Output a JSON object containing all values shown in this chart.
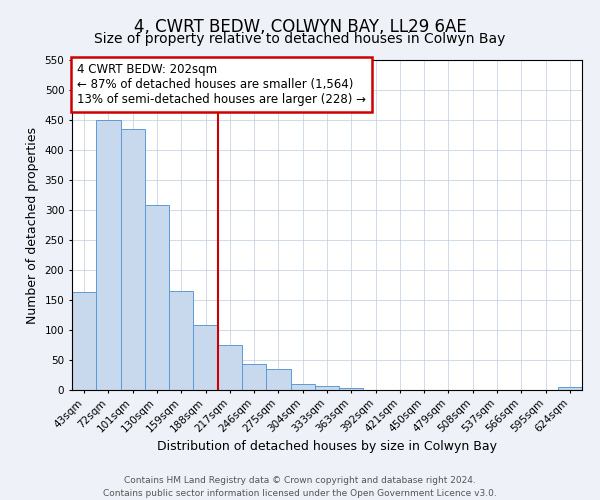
{
  "title": "4, CWRT BEDW, COLWYN BAY, LL29 6AE",
  "subtitle": "Size of property relative to detached houses in Colwyn Bay",
  "xlabel": "Distribution of detached houses by size in Colwyn Bay",
  "ylabel": "Number of detached properties",
  "bar_labels": [
    "43sqm",
    "72sqm",
    "101sqm",
    "130sqm",
    "159sqm",
    "188sqm",
    "217sqm",
    "246sqm",
    "275sqm",
    "304sqm",
    "333sqm",
    "363sqm",
    "392sqm",
    "421sqm",
    "450sqm",
    "479sqm",
    "508sqm",
    "537sqm",
    "566sqm",
    "595sqm",
    "624sqm"
  ],
  "bar_values": [
    163,
    450,
    435,
    308,
    165,
    108,
    75,
    43,
    35,
    10,
    7,
    4,
    0,
    0,
    0,
    0,
    0,
    0,
    0,
    0,
    5
  ],
  "bar_color": "#c8d9ed",
  "bar_edge_color": "#5b9bd5",
  "vline_x_index": 6.0,
  "vline_color": "#cc0000",
  "annotation_line1": "4 CWRT BEDW: 202sqm",
  "annotation_line2": "← 87% of detached houses are smaller (1,564)",
  "annotation_line3": "13% of semi-detached houses are larger (228) →",
  "annotation_box_color": "#cc0000",
  "ylim": [
    0,
    550
  ],
  "yticks": [
    0,
    50,
    100,
    150,
    200,
    250,
    300,
    350,
    400,
    450,
    500,
    550
  ],
  "footer_line1": "Contains HM Land Registry data © Crown copyright and database right 2024.",
  "footer_line2": "Contains public sector information licensed under the Open Government Licence v3.0.",
  "bg_color": "#eef2f8",
  "plot_bg_color": "#ffffff",
  "title_fontsize": 12,
  "subtitle_fontsize": 10,
  "axis_label_fontsize": 9,
  "tick_fontsize": 7.5,
  "footer_fontsize": 6.5,
  "annotation_fontsize": 8.5
}
